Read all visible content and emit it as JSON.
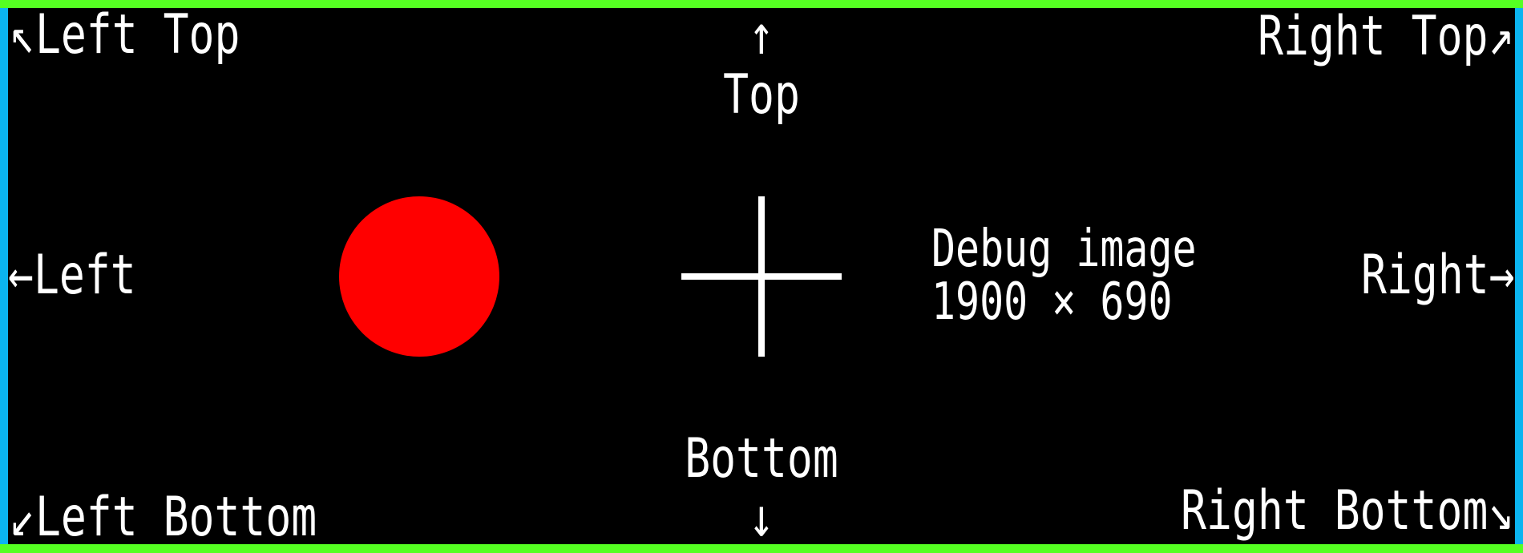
{
  "colors": {
    "background": "#000000",
    "top_bottom_border": "#55ff22",
    "side_border": "#0bb4f0",
    "circle": "#ff0000",
    "foreground": "#ffffff"
  },
  "icons": {
    "up_left": "↖",
    "up": "↑",
    "up_right": "↗",
    "left": "←",
    "right": "→",
    "down_left": "↙",
    "down": "↓",
    "down_right": "↘"
  },
  "labels": {
    "left_top": "Left Top",
    "top": "Top",
    "right_top": "Right Top",
    "left": "Left",
    "right": "Right",
    "left_bottom": "Left Bottom",
    "bottom": "Bottom",
    "right_bottom": "Right Bottom"
  },
  "info": {
    "line1": "Debug image",
    "line2": "1900 × 690"
  }
}
